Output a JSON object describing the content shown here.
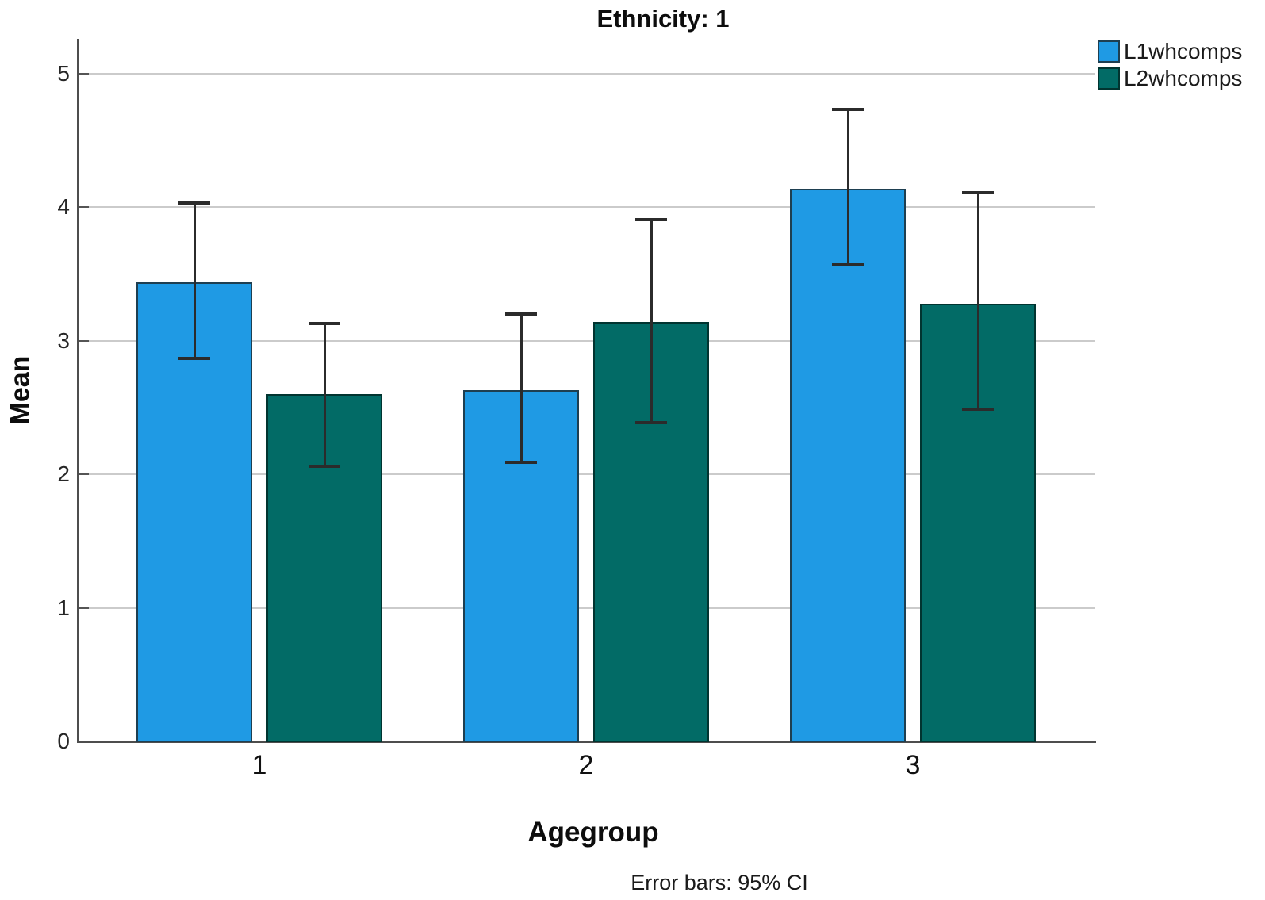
{
  "chart_data": {
    "type": "bar",
    "title": "Ethnicity: 1",
    "xlabel": "Agegroup",
    "ylabel": "Mean",
    "footnote": "Error bars: 95% CI",
    "categories": [
      "1",
      "2",
      "3"
    ],
    "series": [
      {
        "name": "L1whcomps",
        "color": "#1F9AE4",
        "border_color": "#1E3F51",
        "values": [
          3.44,
          2.63,
          4.14
        ],
        "ci_high": [
          4.03,
          3.2,
          4.73
        ],
        "ci_low": [
          2.87,
          2.09,
          3.57
        ]
      },
      {
        "name": "L2whcomps",
        "color": "#026B66",
        "border_color": "#013430",
        "values": [
          2.6,
          3.14,
          3.28
        ],
        "ci_high": [
          3.13,
          3.91,
          4.11
        ],
        "ci_low": [
          2.06,
          2.39,
          2.49
        ]
      }
    ],
    "ylim": [
      0,
      5
    ],
    "yticks": [
      0,
      1,
      2,
      3,
      4,
      5
    ],
    "grid": "horizontal",
    "legend_position": "top-right",
    "error_bars": "95% CI"
  },
  "style_colors": {
    "grid": "#CBCBCB",
    "axis": "#4D4D4D",
    "error_bar": "#2B2B2B",
    "text": "#0D0D0D"
  }
}
